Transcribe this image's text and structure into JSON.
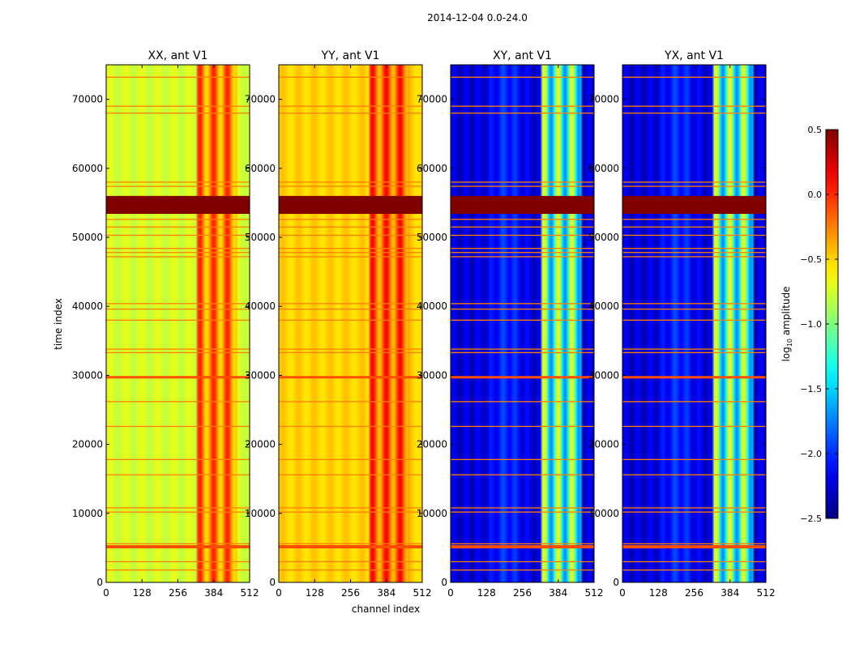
{
  "figure": {
    "suptitle": "2014-12-04 0.0-24.0",
    "ylabel": "time index",
    "xlabel": "channel index"
  },
  "chart_data": {
    "type": "heatmap",
    "x_ticks": [
      0,
      128,
      256,
      384,
      512
    ],
    "y_ticks": [
      0,
      10000,
      20000,
      30000,
      40000,
      50000,
      60000,
      70000
    ],
    "xlim": [
      0,
      512
    ],
    "ylim": [
      0,
      75000
    ],
    "panels": [
      {
        "title": "XX, ant V1",
        "kind": "auto",
        "base": -0.75,
        "band": -0.25
      },
      {
        "title": "YY, ant V1",
        "kind": "auto",
        "base": -0.5,
        "band": -0.15
      },
      {
        "title": "XY, ant V1",
        "kind": "cross",
        "base": -2.25,
        "band": -1.2
      },
      {
        "title": "YX, ant V1",
        "kind": "cross",
        "base": -2.25,
        "band": -1.2
      }
    ],
    "flagged_rows": [
      1800,
      3000,
      5200,
      5600,
      10200,
      10800,
      15600,
      17800,
      22600,
      26200,
      29700,
      33300,
      33800,
      38000,
      39600,
      40400,
      47200,
      47800,
      48400,
      50300,
      51500,
      52600,
      53500,
      57400,
      58000,
      68000,
      69000,
      73200
    ],
    "flag_value": 0.5,
    "colorbar": {
      "label": "log",
      "label_sub": "10",
      "label_rest": " amplitude",
      "range": [
        -2.5,
        0.5
      ],
      "ticks": [
        "0.5",
        "0.0",
        "−0.5",
        "−1.0",
        "−1.5",
        "−2.0",
        "−2.5"
      ],
      "colormap": "jet"
    }
  }
}
